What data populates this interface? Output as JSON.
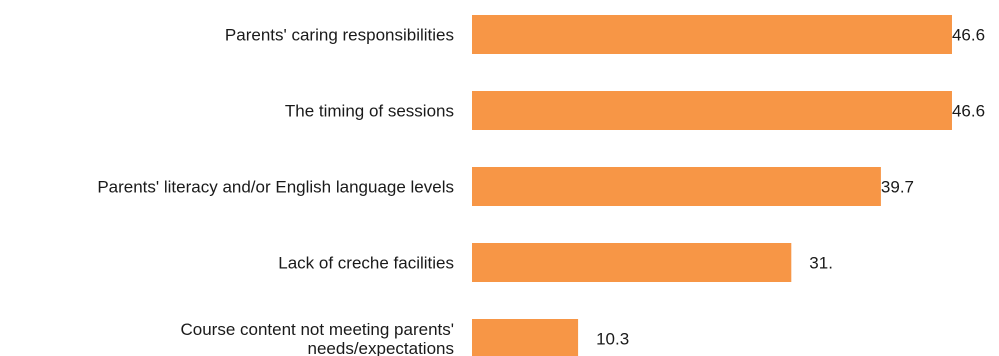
{
  "chart_data": {
    "type": "bar",
    "orientation": "horizontal",
    "categories": [
      [
        "Parents' caring responsibilities"
      ],
      [
        "The timing of sessions"
      ],
      [
        "Parents' literacy and/or English language levels"
      ],
      [
        "Lack of creche facilities"
      ],
      [
        "Course content not meeting parents'",
        "needs/expectations"
      ]
    ],
    "values": [
      46.6,
      46.6,
      39.7,
      31.0,
      10.3
    ],
    "value_labels": [
      "46.6",
      "46.6",
      "39.7",
      "31.",
      "10.3"
    ],
    "bar_color": "#F79646",
    "xlim": [
      0,
      47
    ],
    "grid": false,
    "legend": "none"
  }
}
